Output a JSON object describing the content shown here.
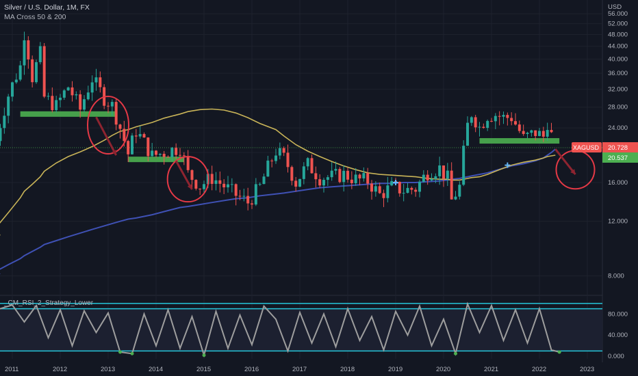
{
  "header": {
    "title": "Silver / U.S. Dollar, 1M, FX",
    "indicator": "MA Cross 50 & 200",
    "lower_indicator": "_CM_RSI_2_Strategy_Lower"
  },
  "colors": {
    "background": "#131722",
    "up_candle": "#26a69a",
    "down_candle": "#ef5350",
    "ma50": "#c9b458",
    "ma200": "#3f51b5",
    "support_zone": "#4caf50",
    "annotation": "#e53946",
    "rsi_line": "#9e9e9e",
    "rsi_band": "#26c6da",
    "price_label_bg": "#ef5350",
    "ma_label_bg": "#4caf50"
  },
  "chart_data": [
    {
      "type": "candlestick",
      "title": "Silver / U.S. Dollar, 1M, FX",
      "currency": "USD",
      "y_scale": "log",
      "ylim": [
        7,
        62
      ],
      "y_ticks": [
        "8.000",
        "12.000",
        "16.000",
        "20.000",
        "24.000",
        "28.000",
        "32.000",
        "36.000",
        "40.000",
        "44.000",
        "48.000",
        "52.000",
        "56.000"
      ],
      "x_ticks": [
        "2011",
        "2012",
        "2013",
        "2014",
        "2015",
        "2016",
        "2017",
        "2018",
        "2019",
        "2020",
        "2021",
        "2022",
        "2023"
      ],
      "x": [
        "2010-09",
        "2010-12",
        "2011-03",
        "2011-04",
        "2011-06",
        "2011-08",
        "2011-09",
        "2011-12",
        "2012-03",
        "2012-06",
        "2012-09",
        "2012-12",
        "2013-02",
        "2013-04",
        "2013-06",
        "2013-08",
        "2013-12",
        "2014-03",
        "2014-07",
        "2014-09",
        "2014-12",
        "2015-03",
        "2015-06",
        "2015-09",
        "2015-12",
        "2016-03",
        "2016-07",
        "2016-09",
        "2016-12",
        "2017-03",
        "2017-06",
        "2017-09",
        "2017-12",
        "2018-03",
        "2018-06",
        "2018-09",
        "2018-12",
        "2019-03",
        "2019-06",
        "2019-09",
        "2019-12",
        "2020-02",
        "2020-03",
        "2020-05",
        "2020-07",
        "2020-08",
        "2020-10",
        "2020-12",
        "2021-02",
        "2021-04",
        "2021-06",
        "2021-09",
        "2021-12",
        "2022-02",
        "2022-03",
        "2022-04",
        "2022-05"
      ],
      "close": [
        21.8,
        30.6,
        37.9,
        48.6,
        35.0,
        41.6,
        30.1,
        28.2,
        32.6,
        27.5,
        34.6,
        30.0,
        28.3,
        24.0,
        19.8,
        23.5,
        19.5,
        20.0,
        20.8,
        17.1,
        15.6,
        16.6,
        15.6,
        14.6,
        13.8,
        15.5,
        20.2,
        19.2,
        16.0,
        18.3,
        16.6,
        16.7,
        17.0,
        16.4,
        16.2,
        14.6,
        15.5,
        15.1,
        15.3,
        17.3,
        17.8,
        16.5,
        14.0,
        15.5,
        24.4,
        26.8,
        24.1,
        26.4,
        26.5,
        25.9,
        26.0,
        22.2,
        23.2,
        22.5,
        25.1,
        22.7,
        20.7
      ],
      "ma50": [
        11.5,
        12.8,
        14.3,
        15.0,
        15.8,
        16.7,
        17.4,
        18.5,
        19.4,
        20.1,
        20.9,
        21.9,
        22.7,
        23.4,
        23.7,
        24.2,
        25.0,
        25.8,
        26.6,
        27.1,
        27.5,
        27.6,
        27.4,
        26.8,
        25.9,
        24.8,
        23.7,
        22.6,
        21.2,
        20.2,
        19.4,
        18.7,
        18.1,
        17.6,
        17.2,
        17.0,
        16.9,
        16.8,
        16.7,
        16.5,
        16.4,
        16.4,
        16.3,
        16.3,
        16.5,
        16.6,
        16.7,
        17.0,
        17.4,
        17.8,
        18.2,
        18.6,
        18.9,
        19.2,
        19.4,
        19.5,
        19.6
      ],
      "ma200": [
        8.3,
        8.7,
        9.1,
        9.3,
        9.6,
        9.9,
        10.1,
        10.4,
        10.7,
        11.0,
        11.3,
        11.6,
        11.8,
        12.0,
        12.2,
        12.3,
        12.6,
        12.9,
        13.3,
        13.4,
        13.6,
        13.8,
        14.0,
        14.2,
        14.3,
        14.5,
        14.7,
        14.8,
        15.0,
        15.2,
        15.4,
        15.5,
        15.6,
        15.7,
        15.8,
        15.9,
        15.9,
        16.0,
        16.0,
        16.1,
        16.2,
        16.3,
        16.4,
        16.5,
        16.7,
        16.8,
        17.0,
        17.2,
        17.5,
        17.8,
        18.1,
        18.4,
        18.8,
        19.2,
        19.6,
        20.0,
        20.5
      ],
      "last_price": {
        "symbol": "XAGUSD",
        "value": "20.728"
      },
      "ma_value": "20.537"
    },
    {
      "type": "line",
      "title": "_CM_RSI_2_Strategy_Lower",
      "ylim": [
        -5,
        105
      ],
      "y_ticks": [
        "0.000",
        "40.000",
        "80.000"
      ],
      "bands": [
        10,
        90
      ],
      "x": [
        "2010-09",
        "2011-01",
        "2011-04",
        "2011-07",
        "2011-10",
        "2012-01",
        "2012-04",
        "2012-07",
        "2012-10",
        "2013-01",
        "2013-04",
        "2013-07",
        "2013-10",
        "2014-01",
        "2014-04",
        "2014-07",
        "2014-10",
        "2015-01",
        "2015-04",
        "2015-07",
        "2015-10",
        "2016-01",
        "2016-04",
        "2016-07",
        "2016-10",
        "2017-01",
        "2017-04",
        "2017-07",
        "2017-10",
        "2018-01",
        "2018-04",
        "2018-07",
        "2018-10",
        "2019-01",
        "2019-04",
        "2019-07",
        "2019-10",
        "2020-01",
        "2020-04",
        "2020-07",
        "2020-10",
        "2021-01",
        "2021-04",
        "2021-07",
        "2021-10",
        "2022-01",
        "2022-04",
        "2022-06"
      ],
      "values": [
        88,
        97,
        65,
        96,
        35,
        88,
        20,
        86,
        45,
        82,
        8,
        5,
        80,
        20,
        88,
        15,
        75,
        2,
        85,
        15,
        78,
        22,
        95,
        70,
        10,
        83,
        25,
        80,
        18,
        90,
        30,
        75,
        12,
        85,
        40,
        95,
        20,
        70,
        5,
        99,
        45,
        96,
        30,
        88,
        25,
        90,
        12,
        8
      ]
    }
  ],
  "annotations": [
    "Support zone 2011–2012 near 26.5",
    "Support zone 2013–2014 near 19",
    "Support zone 2020–2022 near 21.7",
    "Breakdown arrows circled"
  ]
}
